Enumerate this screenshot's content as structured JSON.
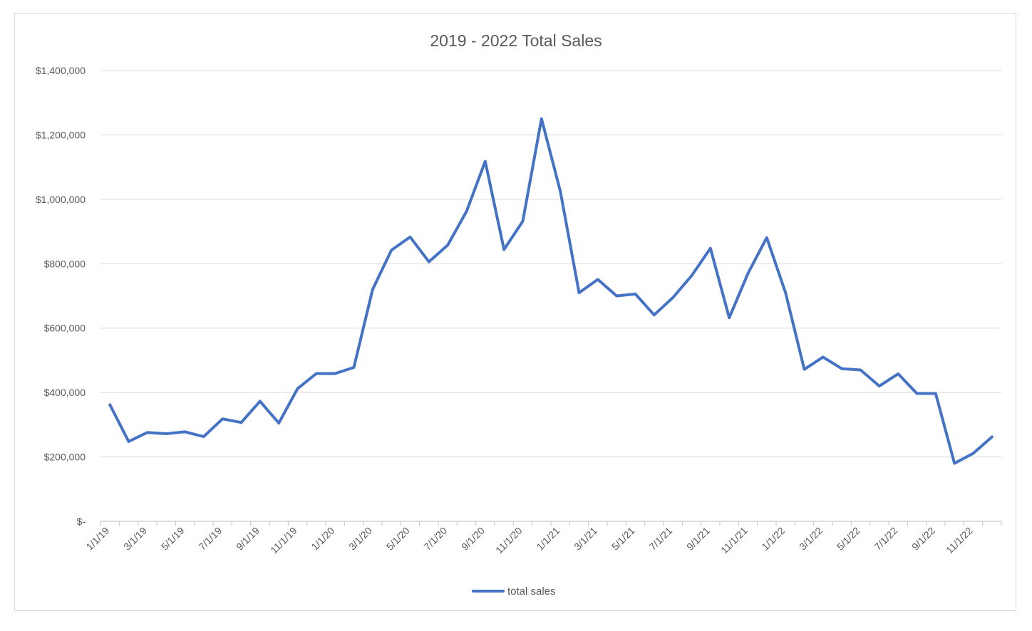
{
  "chart_data": {
    "type": "line",
    "title": "2019 - 2022 Total Sales",
    "xlabel": "",
    "ylabel": "",
    "ylim": [
      0,
      1400000
    ],
    "y_ticks": [
      {
        "value": 0,
        "label": "$-"
      },
      {
        "value": 200000,
        "label": "$200,000"
      },
      {
        "value": 400000,
        "label": "$400,000"
      },
      {
        "value": 600000,
        "label": "$600,000"
      },
      {
        "value": 800000,
        "label": "$800,000"
      },
      {
        "value": 1000000,
        "label": "$1,000,000"
      },
      {
        "value": 1200000,
        "label": "$1,200,000"
      },
      {
        "value": 1400000,
        "label": "$1,400,000"
      }
    ],
    "x_tick_labels": [
      "1/1/19",
      "3/1/19",
      "5/1/19",
      "7/1/19",
      "9/1/19",
      "11/1/19",
      "1/1/20",
      "3/1/20",
      "5/1/20",
      "7/1/20",
      "9/1/20",
      "11/1/20",
      "1/1/21",
      "3/1/21",
      "5/1/21",
      "7/1/21",
      "9/1/21",
      "11/1/21",
      "1/1/22",
      "3/1/22",
      "5/1/22",
      "7/1/22",
      "9/1/22",
      "11/1/22"
    ],
    "x": [
      "1/1/19",
      "2/1/19",
      "3/1/19",
      "4/1/19",
      "5/1/19",
      "6/1/19",
      "7/1/19",
      "8/1/19",
      "9/1/19",
      "10/1/19",
      "11/1/19",
      "12/1/19",
      "1/1/20",
      "2/1/20",
      "3/1/20",
      "4/1/20",
      "5/1/20",
      "6/1/20",
      "7/1/20",
      "8/1/20",
      "9/1/20",
      "10/1/20",
      "11/1/20",
      "12/1/20",
      "1/1/21",
      "2/1/21",
      "3/1/21",
      "4/1/21",
      "5/1/21",
      "6/1/21",
      "7/1/21",
      "8/1/21",
      "9/1/21",
      "10/1/21",
      "11/1/21",
      "12/1/21",
      "1/1/22",
      "2/1/22",
      "3/1/22",
      "4/1/22",
      "5/1/22",
      "6/1/22",
      "7/1/22",
      "8/1/22",
      "9/1/22",
      "10/1/22",
      "11/1/22",
      "12/1/22"
    ],
    "series": [
      {
        "name": "total sales",
        "color": "#4472c4",
        "values": [
          362000,
          248000,
          276000,
          272000,
          278000,
          263000,
          318000,
          307000,
          373000,
          305000,
          412000,
          459000,
          459000,
          478000,
          720000,
          842000,
          883000,
          806000,
          858000,
          962000,
          1118000,
          844000,
          932000,
          1250000,
          1025000,
          710000,
          751000,
          700000,
          706000,
          641000,
          695000,
          763000,
          848000,
          632000,
          770000,
          881000,
          710000,
          472000,
          510000,
          474000,
          470000,
          420000,
          458000,
          397000,
          397000,
          180000,
          211000,
          262000
        ]
      }
    ],
    "grid": true,
    "legend_position": "bottom"
  }
}
